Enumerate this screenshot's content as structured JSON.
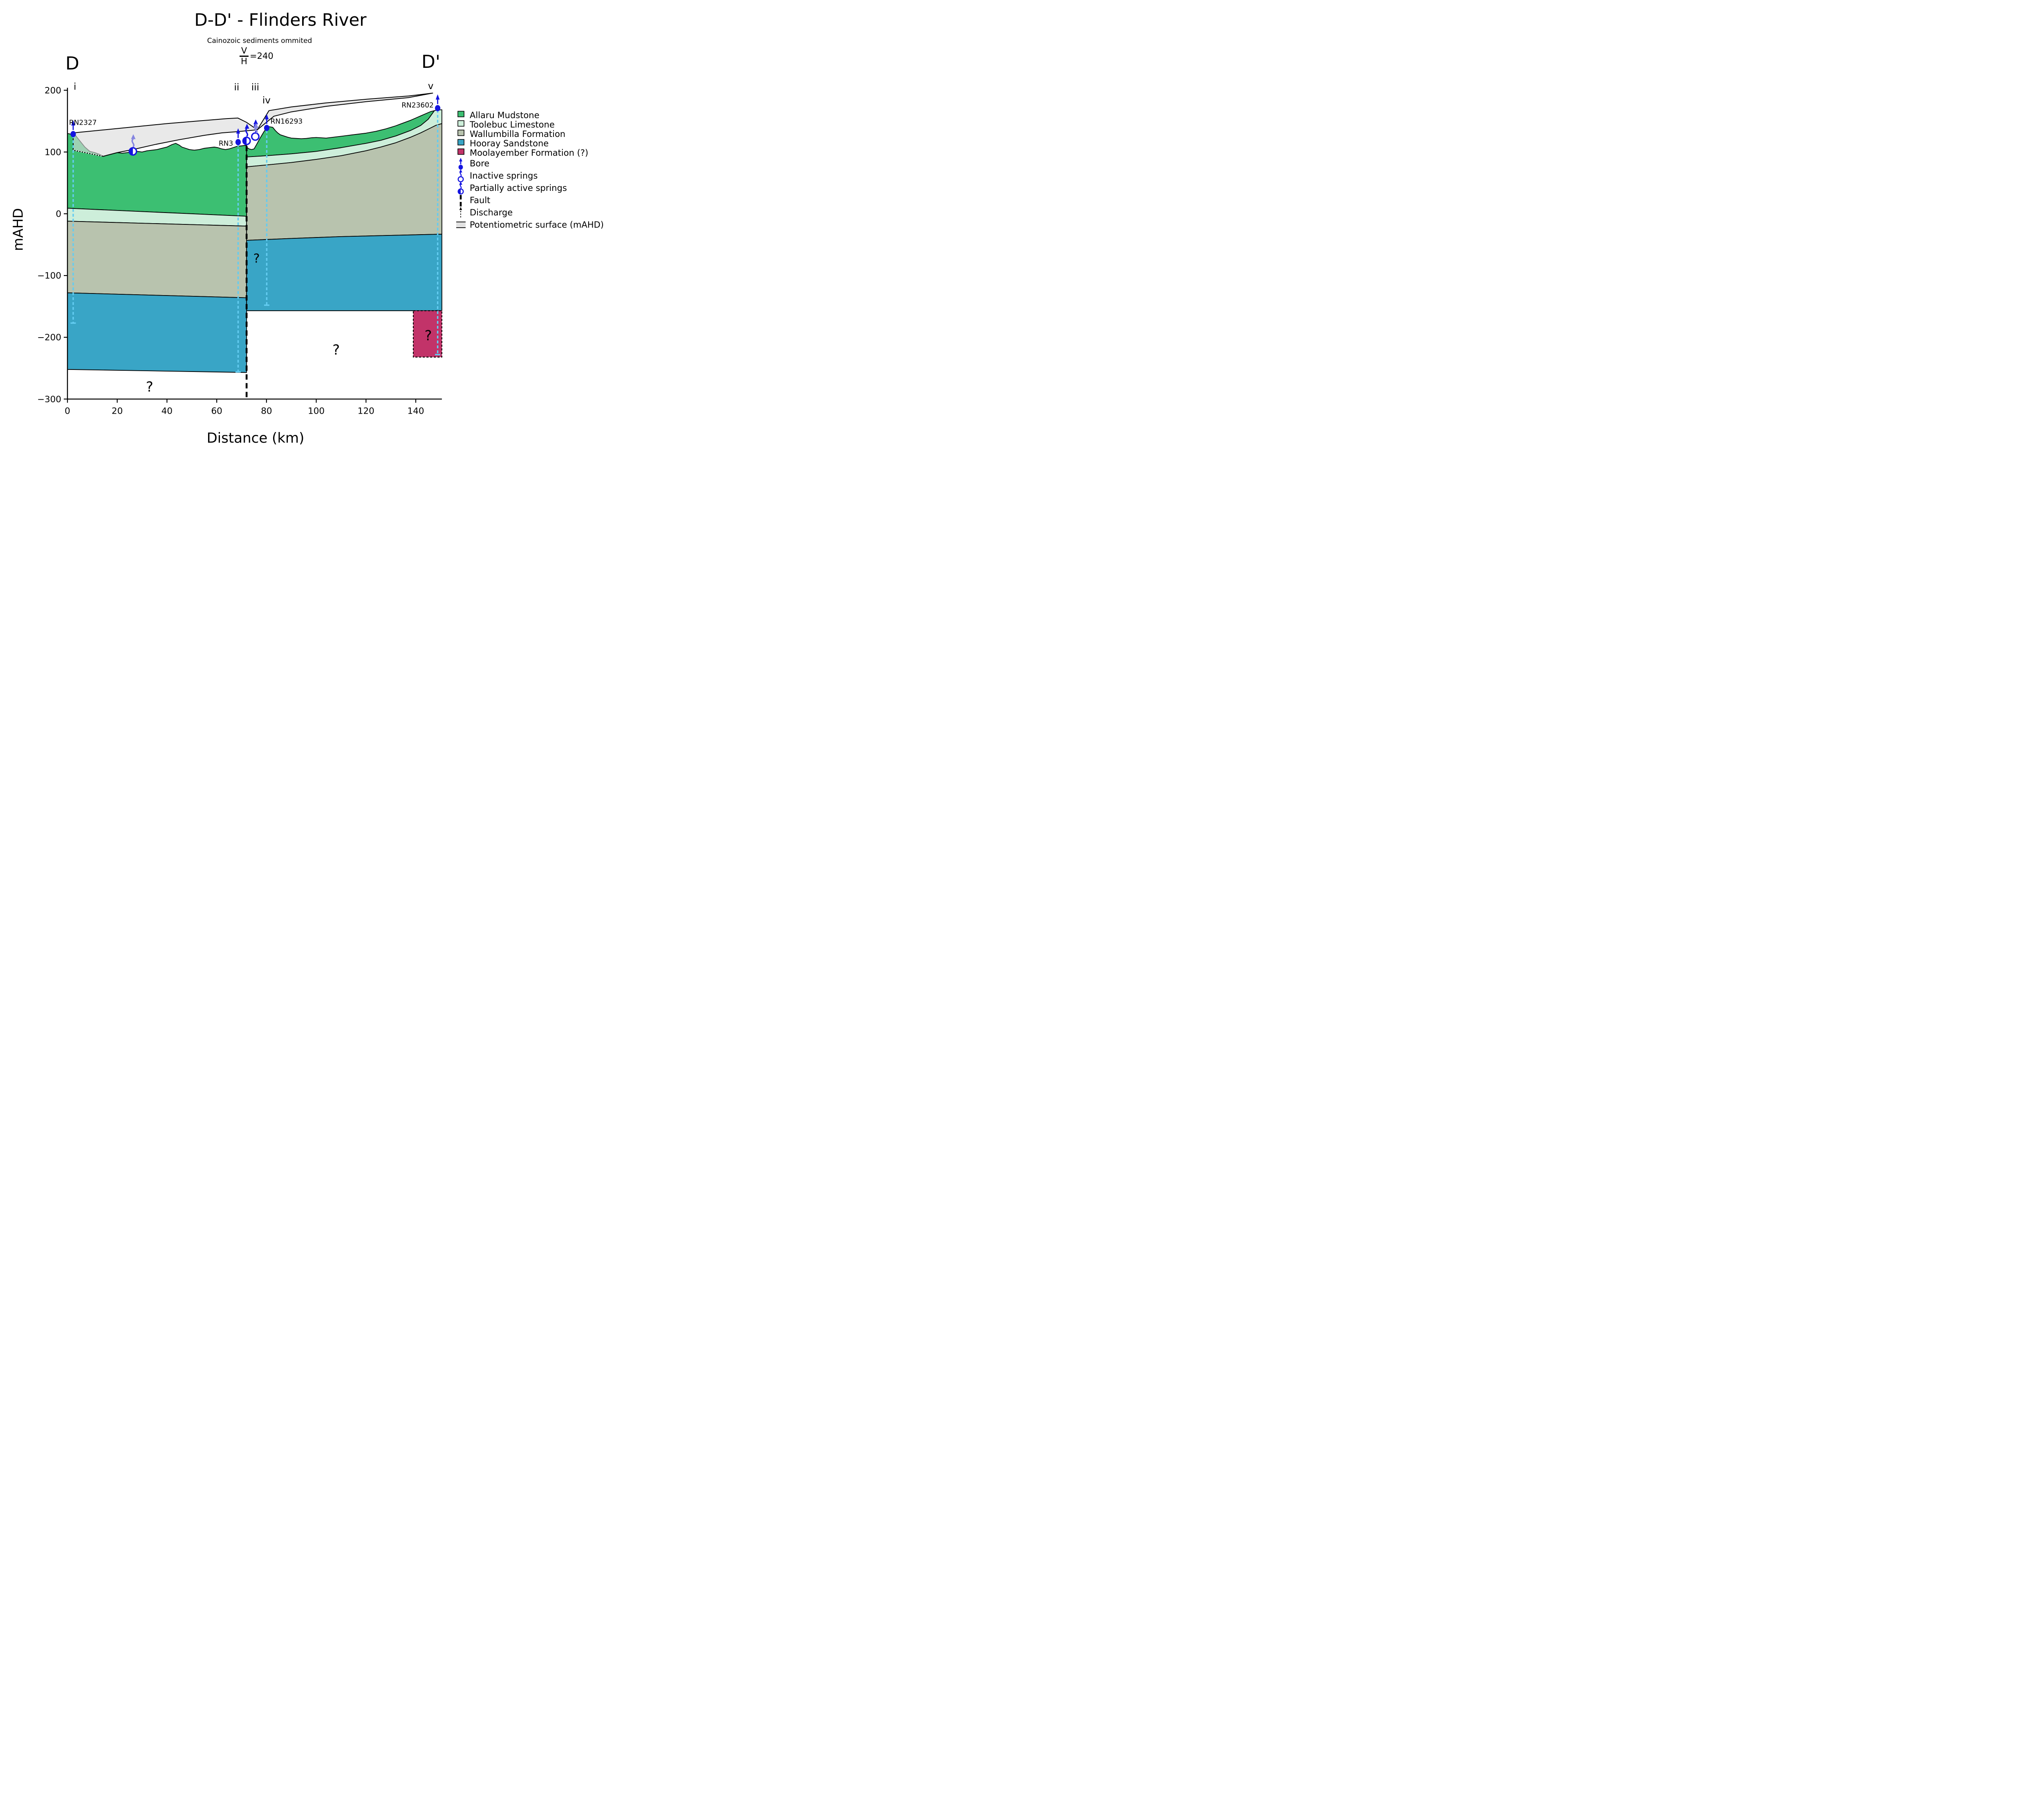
{
  "figure": {
    "title": "D-D' - Flinders River",
    "subtitle": "Cainozoic sediments ommited",
    "vh_numerator": "V",
    "vh_denominator": "H",
    "vh_value": "=240",
    "left_marker": "D",
    "right_marker": "D'"
  },
  "axes": {
    "x_label": "Distance (km)",
    "y_label": "mAHD",
    "x_ticks": [
      {
        "v": 0,
        "label": "0"
      },
      {
        "v": 20,
        "label": "20"
      },
      {
        "v": 40,
        "label": "40"
      },
      {
        "v": 60,
        "label": "60"
      },
      {
        "v": 80,
        "label": "80"
      },
      {
        "v": 100,
        "label": "100"
      },
      {
        "v": 120,
        "label": "120"
      },
      {
        "v": 140,
        "label": "140"
      }
    ],
    "y_ticks": [
      {
        "v": 200,
        "label": "200"
      },
      {
        "v": 100,
        "label": "100"
      },
      {
        "v": 0,
        "label": "0"
      },
      {
        "v": -100,
        "label": "−100"
      },
      {
        "v": -200,
        "label": "−200"
      },
      {
        "v": -300,
        "label": "−300"
      }
    ],
    "x_range": [
      0,
      150.5
    ],
    "y_range": [
      -300,
      204
    ]
  },
  "colors": {
    "allaru": "#3cbf72",
    "toolebuc": "#cdeeda",
    "wallumbilla": "#b8c3ae",
    "hooray": "#39a5c6",
    "moolayember": "#c23369",
    "potentiometric": "#dcdcdc",
    "bore_blue": "#1414e0",
    "borehole_cyan": "#63ccf1",
    "discharge_purple": "#8585e0",
    "outline": "#000000"
  },
  "legend": {
    "items": [
      {
        "label": "Allaru Mudstone",
        "icon": "swatch",
        "color": "#3cbf72"
      },
      {
        "label": "Toolebuc Limestone",
        "icon": "swatch",
        "color": "#cdeeda"
      },
      {
        "label": "Wallumbilla Formation",
        "icon": "swatch",
        "color": "#b8c3ae"
      },
      {
        "label": "Hooray Sandstone",
        "icon": "swatch",
        "color": "#39a5c6"
      },
      {
        "label": "Moolayember Formation (?)",
        "icon": "swatch",
        "color": "#c23369"
      },
      {
        "label": "Bore",
        "icon": "bore"
      },
      {
        "label": "Inactive springs",
        "icon": "spring_inactive"
      },
      {
        "label": "Partially active springs",
        "icon": "spring_partial"
      },
      {
        "label": "Fault",
        "icon": "fault"
      },
      {
        "label": "Discharge",
        "icon": "discharge"
      },
      {
        "label": "Potentiometric surface (mAHD)",
        "icon": "pot_surface",
        "color": "#e2e2e2"
      }
    ]
  },
  "chart_data": {
    "type": "cross_section",
    "x_unit": "km",
    "y_unit": "mAHD",
    "transform": {
      "x0": 165,
      "x_per_km": 6.086,
      "y0": 523,
      "y_per_m": 1.511
    },
    "fault": {
      "x": 72,
      "top": 110,
      "bottom": -300
    },
    "layers": [
      {
        "name": "allaru-west",
        "color": "#3cbf72",
        "points": [
          [
            0,
            130
          ],
          [
            3,
            128
          ],
          [
            5,
            118
          ],
          [
            7,
            108
          ],
          [
            9,
            101
          ],
          [
            11,
            99
          ],
          [
            13,
            96
          ],
          [
            14.5,
            93
          ],
          [
            16,
            95
          ],
          [
            18,
            97
          ],
          [
            20,
            99
          ],
          [
            22,
            98
          ],
          [
            24,
            99
          ],
          [
            26,
            100
          ],
          [
            28,
            101
          ],
          [
            30,
            100
          ],
          [
            32,
            102
          ],
          [
            34,
            103
          ],
          [
            36,
            104
          ],
          [
            38,
            106
          ],
          [
            40,
            108
          ],
          [
            42,
            112
          ],
          [
            43.5,
            114
          ],
          [
            45,
            111
          ],
          [
            46,
            108
          ],
          [
            47.5,
            106
          ],
          [
            49,
            104
          ],
          [
            51,
            103
          ],
          [
            53,
            104
          ],
          [
            55,
            106
          ],
          [
            57,
            107
          ],
          [
            59,
            108
          ],
          [
            60.5,
            107
          ],
          [
            62,
            105
          ],
          [
            63.5,
            104
          ],
          [
            65,
            105
          ],
          [
            66.5,
            107
          ],
          [
            68,
            109
          ],
          [
            70,
            110
          ],
          [
            72,
            111
          ],
          [
            72,
            -4
          ],
          [
            0,
            9
          ]
        ]
      },
      {
        "name": "toolebuc-west",
        "color": "#cdeeda",
        "points": [
          [
            0,
            9
          ],
          [
            72,
            -4
          ],
          [
            72,
            -20
          ],
          [
            0,
            -12
          ]
        ]
      },
      {
        "name": "wallumbilla-west",
        "color": "#b8c3ae",
        "points": [
          [
            0,
            -12
          ],
          [
            72,
            -20
          ],
          [
            72,
            -136
          ],
          [
            0,
            -128
          ]
        ]
      },
      {
        "name": "hooray-west",
        "color": "#39a5c6",
        "points": [
          [
            0,
            -128
          ],
          [
            72,
            -136
          ],
          [
            72,
            -257
          ],
          [
            0,
            -252
          ]
        ]
      },
      {
        "name": "allaru-east",
        "color": "#3cbf72",
        "points": [
          [
            72,
            108
          ],
          [
            73,
            105
          ],
          [
            74,
            104
          ],
          [
            75,
            105
          ],
          [
            76,
            112
          ],
          [
            77.5,
            123
          ],
          [
            79,
            133
          ],
          [
            80,
            139
          ],
          [
            81,
            141
          ],
          [
            82.5,
            140
          ],
          [
            83.5,
            135
          ],
          [
            84.5,
            131
          ],
          [
            85.5,
            128
          ],
          [
            87,
            126
          ],
          [
            88.5,
            124
          ],
          [
            90,
            122.5
          ],
          [
            92,
            122
          ],
          [
            94,
            121.5
          ],
          [
            96,
            122
          ],
          [
            98,
            123
          ],
          [
            100,
            123.5
          ],
          [
            102,
            123
          ],
          [
            104,
            122.5
          ],
          [
            106,
            123.5
          ],
          [
            108,
            124.5
          ],
          [
            110,
            125.5
          ],
          [
            112,
            126.5
          ],
          [
            114,
            127.5
          ],
          [
            116,
            128.5
          ],
          [
            118,
            129.5
          ],
          [
            120,
            130.5
          ],
          [
            122,
            132
          ],
          [
            124,
            133.5
          ],
          [
            126,
            135.5
          ],
          [
            128,
            137.5
          ],
          [
            130,
            140
          ],
          [
            132,
            142.5
          ],
          [
            134,
            145.5
          ],
          [
            136,
            148.5
          ],
          [
            138,
            151.5
          ],
          [
            140,
            155
          ],
          [
            142,
            158.5
          ],
          [
            144,
            162
          ],
          [
            146,
            165.5
          ],
          [
            147.5,
            167
          ],
          [
            145,
            153
          ],
          [
            142,
            143
          ],
          [
            138,
            135
          ],
          [
            132,
            126
          ],
          [
            126,
            119
          ],
          [
            120,
            114
          ],
          [
            110,
            107
          ],
          [
            100,
            101
          ],
          [
            90,
            97
          ],
          [
            80,
            94
          ],
          [
            72,
            92
          ]
        ]
      },
      {
        "name": "toolebuc-east",
        "color": "#cdeeda",
        "points": [
          [
            72,
            92
          ],
          [
            80,
            94
          ],
          [
            90,
            97
          ],
          [
            100,
            101
          ],
          [
            110,
            107
          ],
          [
            120,
            114
          ],
          [
            126,
            119
          ],
          [
            132,
            126
          ],
          [
            138,
            135
          ],
          [
            142,
            143
          ],
          [
            145,
            153
          ],
          [
            147.5,
            167
          ],
          [
            148,
            167.5
          ],
          [
            150.5,
            168.5
          ],
          [
            150.5,
            146
          ],
          [
            148,
            143
          ],
          [
            146,
            139
          ],
          [
            142,
            131
          ],
          [
            138,
            124
          ],
          [
            132,
            115
          ],
          [
            126,
            108
          ],
          [
            120,
            102
          ],
          [
            110,
            94
          ],
          [
            100,
            88
          ],
          [
            90,
            83
          ],
          [
            80,
            79
          ],
          [
            72,
            76
          ]
        ]
      },
      {
        "name": "wallumbilla-east",
        "color": "#b8c3ae",
        "points": [
          [
            72,
            76
          ],
          [
            80,
            79
          ],
          [
            90,
            83
          ],
          [
            100,
            88
          ],
          [
            110,
            94
          ],
          [
            120,
            102
          ],
          [
            126,
            108
          ],
          [
            132,
            115
          ],
          [
            138,
            124
          ],
          [
            142,
            131
          ],
          [
            146,
            139
          ],
          [
            148,
            143
          ],
          [
            150.5,
            146
          ],
          [
            150.5,
            -33
          ],
          [
            130,
            -35
          ],
          [
            110,
            -37
          ],
          [
            90,
            -40
          ],
          [
            72,
            -43
          ]
        ]
      },
      {
        "name": "hooray-east",
        "color": "#39a5c6",
        "points": [
          [
            72,
            -43
          ],
          [
            90,
            -40
          ],
          [
            110,
            -37
          ],
          [
            130,
            -35
          ],
          [
            150.5,
            -33
          ],
          [
            150.5,
            -157
          ],
          [
            72,
            -157
          ]
        ]
      },
      {
        "name": "moolayember",
        "color": "#c23369",
        "dashed_outline": true,
        "points": [
          [
            139,
            -157
          ],
          [
            150.5,
            -157
          ],
          [
            150.5,
            -232
          ],
          [
            139,
            -232
          ]
        ]
      }
    ],
    "potentiometric": {
      "fill": "#dcdcdc",
      "opacity": 0.62,
      "polygons": [
        [
          [
            2.3,
            131
          ],
          [
            20,
            138
          ],
          [
            40,
            146
          ],
          [
            55,
            151
          ],
          [
            64,
            154
          ],
          [
            68.5,
            155
          ],
          [
            72,
            148
          ],
          [
            76.3,
            136
          ],
          [
            68.5,
            133
          ],
          [
            62,
            131
          ],
          [
            55,
            127
          ],
          [
            45,
            120
          ],
          [
            35,
            112
          ],
          [
            26.3,
            104
          ],
          [
            20,
            99
          ],
          [
            14.3,
            93
          ],
          [
            2.3,
            103
          ]
        ],
        [
          [
            76.3,
            136
          ],
          [
            81,
            167
          ],
          [
            90,
            173
          ],
          [
            104,
            179.5
          ],
          [
            120,
            185.4
          ],
          [
            137,
            190.7
          ],
          [
            146.8,
            195.4
          ],
          [
            137,
            188
          ],
          [
            120,
            181.5
          ],
          [
            104,
            174
          ],
          [
            90,
            165
          ],
          [
            83,
            158
          ]
        ]
      ],
      "hidden_edge_dotted": [
        [
          2.3,
          103
        ],
        [
          14.3,
          93
        ]
      ]
    },
    "boreholes": [
      {
        "id": "RN2327",
        "x": 2.3,
        "top": 127,
        "bottom": -177
      },
      {
        "id": "RN3",
        "x": 68.6,
        "top": 113,
        "bottom": -256
      },
      {
        "id": "RN16293",
        "x": 80.1,
        "top": 135,
        "bottom": -148
      },
      {
        "id": "RN23602",
        "x": 148.8,
        "top": 168,
        "bottom": -228
      }
    ],
    "bores": [
      {
        "label": "RN2327",
        "x": 2.3,
        "y": 129,
        "label_x": 6.2,
        "label_y": 148,
        "anchor": "middle"
      },
      {
        "label": "RN3",
        "x": 68.6,
        "y": 116,
        "label_x": 66.6,
        "label_y": 114,
        "anchor": "end"
      },
      {
        "label": "RN16293",
        "x": 80.1,
        "y": 139,
        "label_x": 81.6,
        "label_y": 150,
        "anchor": "start"
      },
      {
        "label": "RN23602",
        "x": 148.8,
        "y": 171,
        "label_x": 147.2,
        "label_y": 176,
        "anchor": "end"
      }
    ],
    "springs": [
      {
        "type": "partially_active",
        "x": 26.3,
        "y": 101,
        "arrow_color": "#8585e0"
      },
      {
        "type": "partially_active",
        "x": 72,
        "y": 118,
        "arrow_color": "#1414e0"
      },
      {
        "type": "inactive",
        "x": 75.5,
        "y": 125,
        "arrow_color": "#1414e0"
      }
    ],
    "discharge": {
      "x": 75.8,
      "from": 131,
      "to": 145
    },
    "question_marks": [
      {
        "x": 33,
        "y": -280,
        "size": 34
      },
      {
        "x": 76,
        "y": -72,
        "size": 30
      },
      {
        "x": 108,
        "y": -220,
        "size": 34
      },
      {
        "x": 145,
        "y": -197,
        "size": 34
      }
    ],
    "roman_numerals": [
      {
        "label": "i",
        "x": 3,
        "y": 206
      },
      {
        "label": "ii",
        "x": 68,
        "y": 205
      },
      {
        "label": "iii",
        "x": 75.5,
        "y": 205
      },
      {
        "label": "iv",
        "x": 80,
        "y": 184
      },
      {
        "label": "v",
        "x": 146,
        "y": 207
      }
    ]
  }
}
